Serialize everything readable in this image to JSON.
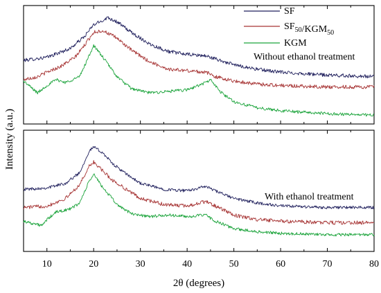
{
  "colors": {
    "SF": "#1f1f5c",
    "SF50KGM50": "#a63333",
    "KGM": "#1aa33a",
    "axis": "#000000"
  },
  "chart_data": {
    "type": "line",
    "xlabel": "2θ (degrees)",
    "ylabel": "Intensity (a.u.)",
    "xlim": [
      5,
      80
    ],
    "x_ticks": [
      10,
      20,
      30,
      40,
      50,
      60,
      70,
      80
    ],
    "y_ticks_labeled": false,
    "grid": false,
    "legend": {
      "placement": "top-right of upper panel",
      "entries": [
        {
          "series": "SF",
          "main": "SF",
          "sub1": "",
          "mid": "",
          "sub2": ""
        },
        {
          "series": "SF50KGM50",
          "main": "SF",
          "sub1": "50",
          "mid": "/KGM",
          "sub2": "50"
        },
        {
          "series": "KGM",
          "main": "KGM",
          "sub1": "",
          "mid": "",
          "sub2": ""
        }
      ]
    },
    "panels": [
      {
        "label": "Without ethanol treatment",
        "series": [
          {
            "name": "SF",
            "color_key": "SF",
            "noise": 0.06,
            "x": [
              5,
              10,
              15,
              18,
              20,
              22,
              23,
              25,
              28,
              32,
              36,
              40,
              44,
              46,
              50,
              55,
              60,
              70,
              80
            ],
            "y": [
              2.95,
              3.05,
              3.35,
              3.75,
              4.15,
              4.3,
              4.4,
              4.25,
              3.9,
              3.5,
              3.25,
              3.15,
              3.1,
              3.0,
              2.8,
              2.65,
              2.55,
              2.45,
              2.4
            ]
          },
          {
            "name": "SF50KGM50",
            "color_key": "SF50KGM50",
            "noise": 0.06,
            "x": [
              5,
              8,
              10,
              13,
              16,
              18,
              20,
              22,
              25,
              28,
              32,
              36,
              40,
              44,
              46,
              50,
              55,
              60,
              70,
              80
            ],
            "y": [
              2.3,
              2.4,
              2.55,
              2.75,
              3.05,
              3.45,
              3.9,
              3.95,
              3.7,
              3.3,
              2.9,
              2.65,
              2.6,
              2.55,
              2.4,
              2.25,
              2.15,
              2.1,
              2.05,
              2.05
            ]
          },
          {
            "name": "KGM",
            "color_key": "KGM",
            "noise": 0.05,
            "x": [
              5,
              8,
              10,
              12,
              14,
              17,
              19,
              20,
              22,
              25,
              28,
              32,
              36,
              40,
              44,
              45,
              47,
              50,
              55,
              60,
              70,
              80
            ],
            "y": [
              2.25,
              1.85,
              2.1,
              2.3,
              2.2,
              2.4,
              3.1,
              3.45,
              3.05,
              2.4,
              2.0,
              1.85,
              1.9,
              1.95,
              2.2,
              2.3,
              1.9,
              1.55,
              1.35,
              1.25,
              1.15,
              1.1
            ]
          }
        ]
      },
      {
        "label": "With ethanol treatment",
        "series": [
          {
            "name": "SF",
            "color_key": "SF",
            "noise": 0.05,
            "x": [
              5,
              10,
              14,
              17,
              19,
              20,
              22,
              24,
              27,
              30,
              35,
              40,
              44,
              46,
              50,
              55,
              60,
              70,
              80
            ],
            "y": [
              2.85,
              2.9,
              3.05,
              3.4,
              4.1,
              4.25,
              4.05,
              3.7,
              3.35,
              3.05,
              2.85,
              2.8,
              2.95,
              2.8,
              2.55,
              2.4,
              2.3,
              2.25,
              2.25
            ]
          },
          {
            "name": "SF50KGM50",
            "color_key": "SF50KGM50",
            "noise": 0.06,
            "x": [
              5,
              10,
              14,
              17,
              19,
              20,
              22,
              24,
              27,
              30,
              35,
              40,
              44,
              46,
              50,
              55,
              60,
              70,
              80
            ],
            "y": [
              2.25,
              2.3,
              2.55,
              3.0,
              3.6,
              3.75,
              3.45,
              3.15,
              2.85,
              2.55,
              2.35,
              2.3,
              2.45,
              2.3,
              2.0,
              1.85,
              1.8,
              1.75,
              1.75
            ]
          },
          {
            "name": "KGM",
            "color_key": "KGM",
            "noise": 0.05,
            "x": [
              5,
              9,
              10,
              12,
              15,
              17,
              19,
              20,
              22,
              25,
              28,
              32,
              36,
              40,
              44,
              46,
              50,
              55,
              60,
              70,
              80
            ],
            "y": [
              1.8,
              1.65,
              1.85,
              2.1,
              2.2,
              2.4,
              3.1,
              3.35,
              2.9,
              2.35,
              2.05,
              1.95,
              2.0,
              1.95,
              2.0,
              1.8,
              1.55,
              1.45,
              1.4,
              1.35,
              1.35
            ]
          }
        ]
      }
    ]
  }
}
